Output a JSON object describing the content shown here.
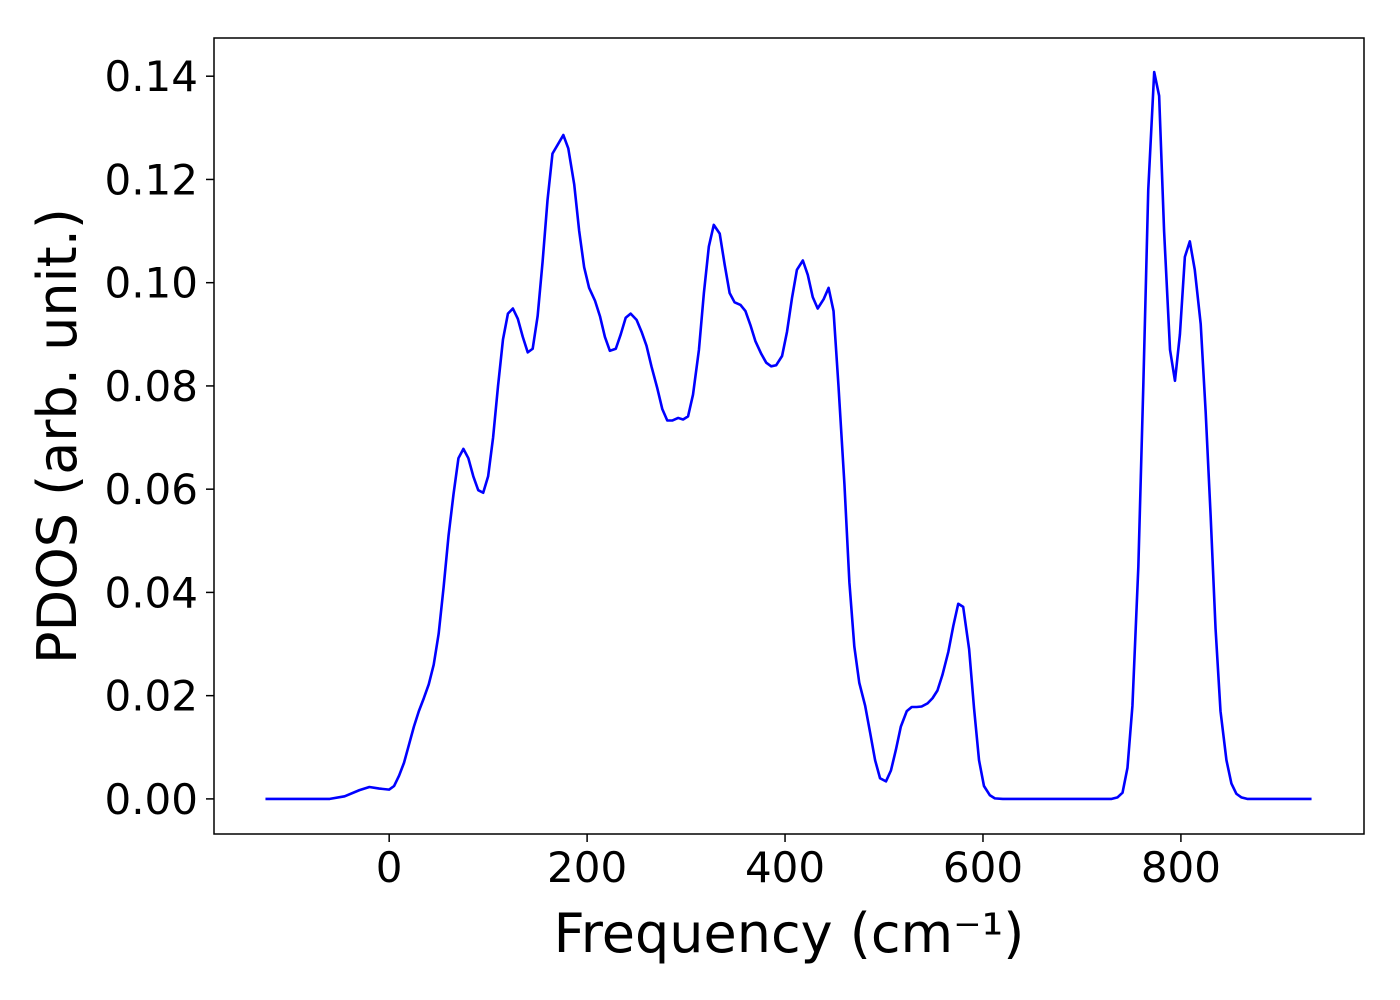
{
  "chart_data": {
    "type": "line",
    "x_label": "Frequency (cm⁻¹)",
    "y_label": "PDOS (arb. unit.)",
    "xlim": [
      -177,
      985
    ],
    "ylim": [
      -0.0068,
      0.1474
    ],
    "xticks": [
      0,
      200,
      400,
      600,
      800
    ],
    "yticks": [
      {
        "value": 0,
        "label": "0.00"
      },
      0.02,
      0.04,
      0.06,
      0.08,
      {
        "value": 0.1,
        "label": "0.10"
      },
      0.12,
      0.14
    ],
    "grid": false,
    "series": [
      {
        "color": "#0000ff",
        "x": [
          -125,
          -60,
          -45,
          -30,
          -20,
          -10,
          0,
          5,
          10,
          15,
          20,
          25,
          30,
          35,
          40,
          45,
          50,
          55,
          60,
          65,
          70,
          75,
          80,
          85,
          90,
          95,
          100,
          105,
          110,
          115,
          120,
          125,
          130,
          135,
          140,
          145,
          150,
          155,
          160,
          165,
          176,
          181,
          187,
          192,
          197,
          202,
          208,
          213,
          218,
          223,
          229,
          234,
          239,
          244,
          250,
          255,
          260,
          265,
          271,
          276,
          281,
          286,
          292,
          297,
          302,
          307,
          313,
          318,
          323,
          328,
          334,
          339,
          344,
          349,
          355,
          360,
          365,
          370,
          376,
          381,
          386,
          391,
          397,
          402,
          407,
          412,
          418,
          423,
          428,
          433,
          439,
          444,
          449,
          454,
          460,
          465,
          470,
          475,
          481,
          486,
          491,
          496,
          502,
          507,
          512,
          517,
          523,
          528,
          533,
          538,
          544,
          549,
          554,
          559,
          565,
          570,
          575,
          580,
          586,
          591,
          596,
          601,
          607,
          612,
          620,
          730,
          736,
          741,
          746,
          751,
          757,
          762,
          767,
          773,
          778,
          783,
          789,
          794,
          799,
          804,
          809,
          814,
          820,
          825,
          830,
          835,
          840,
          846,
          851,
          856,
          861,
          867,
          932
        ],
        "values": [
          0,
          0,
          0.0005,
          0.0017,
          0.0023,
          0.002,
          0.0018,
          0.0025,
          0.0045,
          0.007,
          0.0105,
          0.014,
          0.017,
          0.0195,
          0.0222,
          0.026,
          0.032,
          0.041,
          0.051,
          0.059,
          0.066,
          0.0678,
          0.066,
          0.0625,
          0.0598,
          0.0593,
          0.0625,
          0.07,
          0.08,
          0.089,
          0.094,
          0.095,
          0.093,
          0.0895,
          0.0865,
          0.0872,
          0.0935,
          0.104,
          0.116,
          0.125,
          0.1286,
          0.126,
          0.119,
          0.11,
          0.103,
          0.099,
          0.0965,
          0.0935,
          0.0895,
          0.0868,
          0.0872,
          0.09,
          0.0932,
          0.094,
          0.0928,
          0.0905,
          0.0878,
          0.0838,
          0.0795,
          0.0755,
          0.0733,
          0.0733,
          0.0738,
          0.0735,
          0.0741,
          0.0783,
          0.087,
          0.098,
          0.107,
          0.1112,
          0.1095,
          0.1035,
          0.098,
          0.0962,
          0.0957,
          0.0945,
          0.0918,
          0.0887,
          0.0862,
          0.0845,
          0.0838,
          0.084,
          0.0858,
          0.0905,
          0.097,
          0.1025,
          0.1043,
          0.1015,
          0.0972,
          0.095,
          0.0968,
          0.099,
          0.0945,
          0.08,
          0.061,
          0.042,
          0.0295,
          0.0225,
          0.018,
          0.0128,
          0.0075,
          0.004,
          0.0034,
          0.0055,
          0.0095,
          0.014,
          0.017,
          0.0178,
          0.0178,
          0.0179,
          0.0185,
          0.0195,
          0.021,
          0.024,
          0.0285,
          0.0335,
          0.0378,
          0.0372,
          0.029,
          0.0175,
          0.0075,
          0.0025,
          0.0007,
          0.0001,
          0,
          0,
          0.0003,
          0.0012,
          0.006,
          0.018,
          0.045,
          0.08,
          0.118,
          0.1408,
          0.1362,
          0.11,
          0.087,
          0.081,
          0.09,
          0.105,
          0.108,
          0.1025,
          0.092,
          0.075,
          0.055,
          0.033,
          0.017,
          0.0075,
          0.003,
          0.001,
          0.0003,
          0,
          0
        ]
      }
    ]
  }
}
